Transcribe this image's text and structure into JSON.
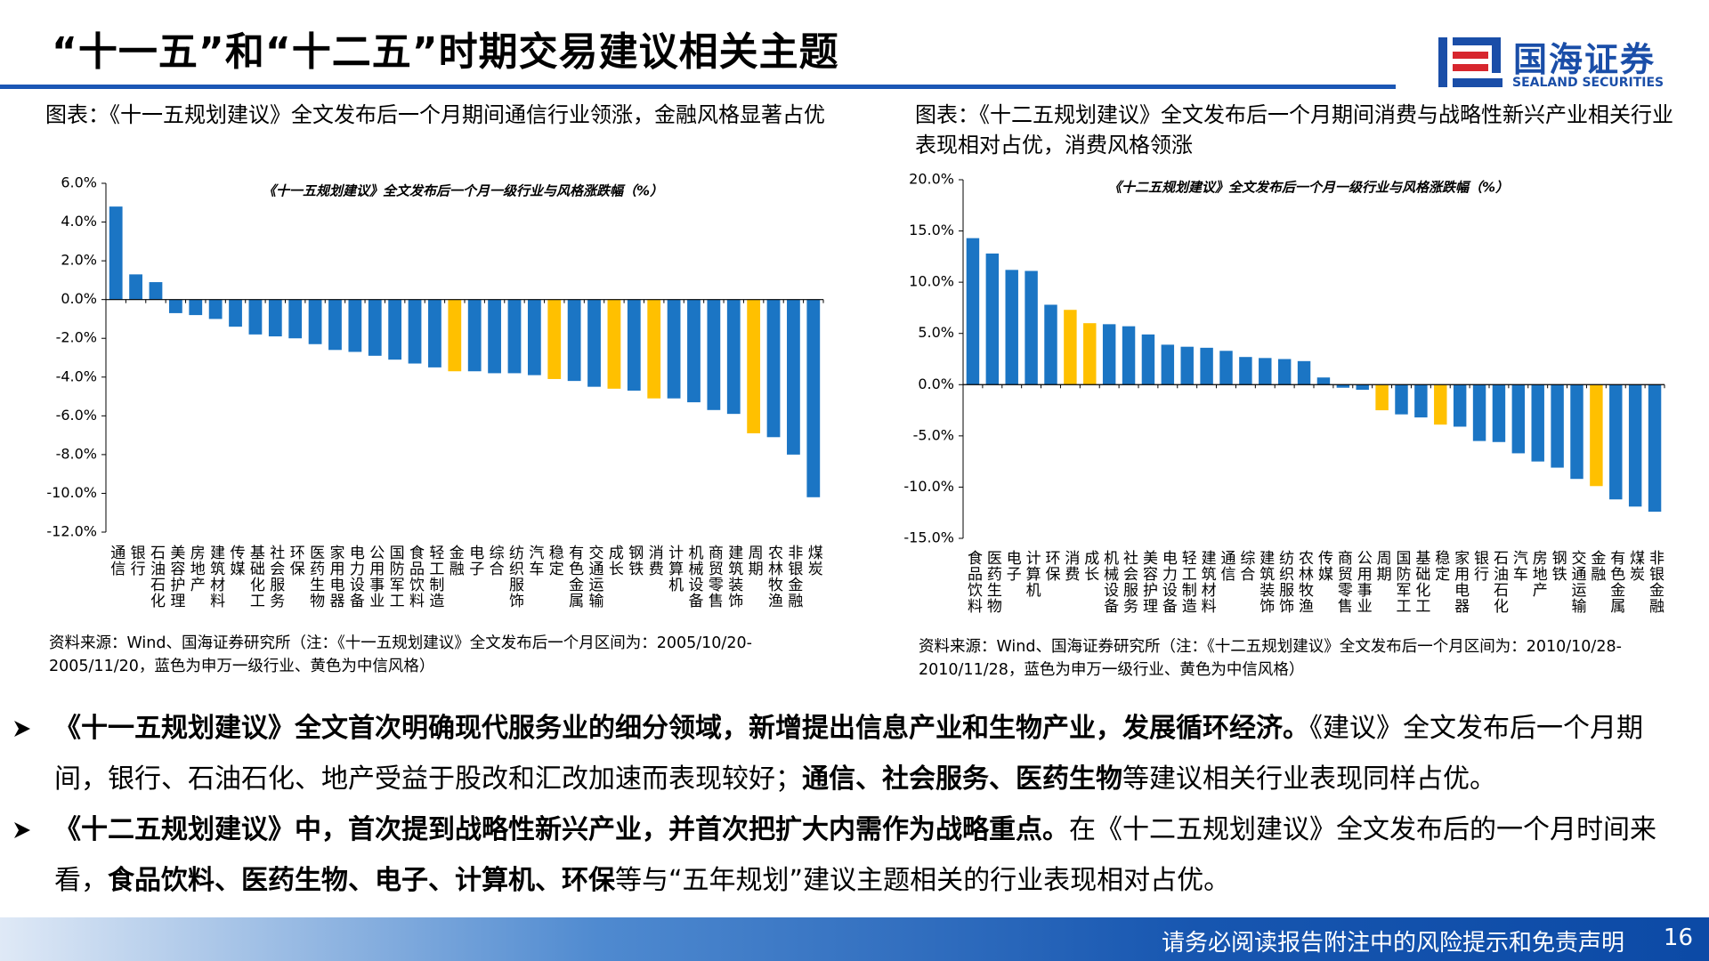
{
  "header": {
    "title": "“十一五”和“十二五”时期交易建议相关主题",
    "logo_cn": "国海证券",
    "logo_en": "SEALAND SECURITIES"
  },
  "chart_data": [
    {
      "type": "bar",
      "caption": "图表：《十一五规划建议》全文发布后一个月期间通信行业领涨，金融风格显著占优",
      "title": "《十一五规划建议》全文发布后一个月一级行业与风格涨跌幅（%）",
      "categories": [
        "通信",
        "银行",
        "石油石化",
        "美容护理",
        "房地产",
        "建筑材料",
        "传媒",
        "基础化工",
        "社会服务",
        "环保",
        "医药生物",
        "家用电器",
        "电力设备",
        "公用事业",
        "国防军工",
        "食品饮料",
        "轻工制造",
        "金融",
        "电子",
        "综合",
        "纺织服饰",
        "汽车",
        "稳定",
        "有色金属",
        "交通运输",
        "成长",
        "钢铁",
        "消费",
        "计算机",
        "机械设备",
        "商贸零售",
        "建筑装饰",
        "周期",
        "农林牧渔",
        "非银金融",
        "煤炭"
      ],
      "values": [
        4.8,
        1.3,
        0.9,
        -0.7,
        -0.8,
        -1.0,
        -1.4,
        -1.8,
        -1.9,
        -2.0,
        -2.3,
        -2.6,
        -2.7,
        -2.9,
        -3.1,
        -3.3,
        -3.5,
        -3.7,
        -3.7,
        -3.8,
        -3.8,
        -3.9,
        -4.1,
        -4.2,
        -4.5,
        -4.6,
        -4.7,
        -5.1,
        -5.1,
        -5.3,
        -5.7,
        -5.9,
        -6.9,
        -7.1,
        -8.0,
        -10.2
      ],
      "colors": [
        "#1b75c4",
        "#1b75c4",
        "#1b75c4",
        "#1b75c4",
        "#1b75c4",
        "#1b75c4",
        "#1b75c4",
        "#1b75c4",
        "#1b75c4",
        "#1b75c4",
        "#1b75c4",
        "#1b75c4",
        "#1b75c4",
        "#1b75c4",
        "#1b75c4",
        "#1b75c4",
        "#1b75c4",
        "#ffc000",
        "#1b75c4",
        "#1b75c4",
        "#1b75c4",
        "#1b75c4",
        "#ffc000",
        "#1b75c4",
        "#1b75c4",
        "#ffc000",
        "#1b75c4",
        "#ffc000",
        "#1b75c4",
        "#1b75c4",
        "#1b75c4",
        "#1b75c4",
        "#ffc000",
        "#1b75c4",
        "#1b75c4",
        "#1b75c4"
      ],
      "ylim": [
        -12,
        6
      ],
      "yticks": [
        {
          "value": -12,
          "label": "-12.0%"
        },
        {
          "value": -10,
          "label": "-10.0%"
        },
        {
          "value": -8,
          "label": "-8.0%"
        },
        {
          "value": -6,
          "label": "-6.0%"
        },
        {
          "value": -4,
          "label": "-4.0%"
        },
        {
          "value": -2,
          "label": "-2.0%"
        },
        {
          "value": 0,
          "label": "0.0%"
        },
        {
          "value": 2,
          "label": "2.0%"
        },
        {
          "value": 4,
          "label": "4.0%"
        },
        {
          "value": 6,
          "label": "6.0%"
        }
      ],
      "source": "资料来源：Wind、国海证券研究所（注：《十一五规划建议》全文发布后一个月区间为：2005/10/20-2005/11/20，蓝色为申万一级行业、黄色为中信风格）"
    },
    {
      "type": "bar",
      "caption": "图表：《十二五规划建议》全文发布后一个月期间消费与战略性新兴产业相关行业表现相对占优，消费风格领涨",
      "title": "《十二五规划建议》全文发布后一个月一级行业与风格涨跌幅（%）",
      "categories": [
        "食品饮料",
        "医药生物",
        "电子",
        "计算机",
        "环保",
        "消费",
        "成长",
        "机械设备",
        "社会服务",
        "美容护理",
        "电力设备",
        "轻工制造",
        "建筑材料",
        "通信",
        "综合",
        "建筑装饰",
        "纺织服饰",
        "农林牧渔",
        "传媒",
        "商贸零售",
        "公用事业",
        "周期",
        "国防军工",
        "基础化工",
        "稳定",
        "家用电器",
        "银行",
        "石油石化",
        "汽车",
        "房地产",
        "钢铁",
        "交通运输",
        "金融",
        "有色金属",
        "煤炭",
        "非银金融"
      ],
      "values": [
        14.3,
        12.8,
        11.2,
        11.1,
        7.8,
        7.3,
        6.0,
        5.9,
        5.7,
        4.9,
        3.9,
        3.7,
        3.6,
        3.3,
        2.7,
        2.6,
        2.5,
        2.3,
        0.7,
        -0.3,
        -0.5,
        -2.5,
        -2.9,
        -3.2,
        -3.9,
        -4.1,
        -5.5,
        -5.6,
        -6.7,
        -7.5,
        -8.1,
        -9.2,
        -9.9,
        -11.2,
        -11.9,
        -12.4
      ],
      "colors": [
        "#1b75c4",
        "#1b75c4",
        "#1b75c4",
        "#1b75c4",
        "#1b75c4",
        "#ffc000",
        "#ffc000",
        "#1b75c4",
        "#1b75c4",
        "#1b75c4",
        "#1b75c4",
        "#1b75c4",
        "#1b75c4",
        "#1b75c4",
        "#1b75c4",
        "#1b75c4",
        "#1b75c4",
        "#1b75c4",
        "#1b75c4",
        "#1b75c4",
        "#1b75c4",
        "#ffc000",
        "#1b75c4",
        "#1b75c4",
        "#ffc000",
        "#1b75c4",
        "#1b75c4",
        "#1b75c4",
        "#1b75c4",
        "#1b75c4",
        "#1b75c4",
        "#1b75c4",
        "#ffc000",
        "#1b75c4",
        "#1b75c4",
        "#1b75c4"
      ],
      "ylim": [
        -15,
        20
      ],
      "yticks": [
        {
          "value": -15,
          "label": "-15.0%"
        },
        {
          "value": -10,
          "label": "-10.0%"
        },
        {
          "value": -5,
          "label": "-5.0%"
        },
        {
          "value": 0,
          "label": "0.0%"
        },
        {
          "value": 5,
          "label": "5.0%"
        },
        {
          "value": 10,
          "label": "10.0%"
        },
        {
          "value": 15,
          "label": "15.0%"
        },
        {
          "value": 20,
          "label": "20.0%"
        }
      ],
      "source": "资料来源：Wind、国海证券研究所（注：《十二五规划建议》全文发布后一个月区间为：2010/10/28-2010/11/28，蓝色为申万一级行业、黄色为中信风格）"
    }
  ],
  "bullets": [
    {
      "segments": [
        {
          "text": "《十一五规划建议》全文首次明确现代服务业的细分领域，新增提出信息产业和生物产业，发展循环经济。",
          "bold": true
        },
        {
          "text": "《建议》全文发布后一个月期间，银行、石油石化、地产受益于股改和汇改加速而表现较好；",
          "bold": false
        },
        {
          "text": "通信、社会服务、医药生物",
          "bold": true
        },
        {
          "text": "等建议相关行业表现同样占优。",
          "bold": false
        }
      ]
    },
    {
      "segments": [
        {
          "text": "《十二五规划建议》中，首次提到战略性新兴产业，并首次把扩大内需作为战略重点。",
          "bold": true
        },
        {
          "text": "在《十二五规划建议》全文发布后的一个月时间来看，",
          "bold": false
        },
        {
          "text": "食品饮料、医药生物、电子、计算机、环保",
          "bold": true
        },
        {
          "text": "等与“五年规划”建议主题相关的行业表现相对占优。",
          "bold": false
        }
      ]
    }
  ],
  "footer": {
    "disclaimer": "请务必阅读报告附注中的风险提示和免责声明",
    "page": 16
  }
}
